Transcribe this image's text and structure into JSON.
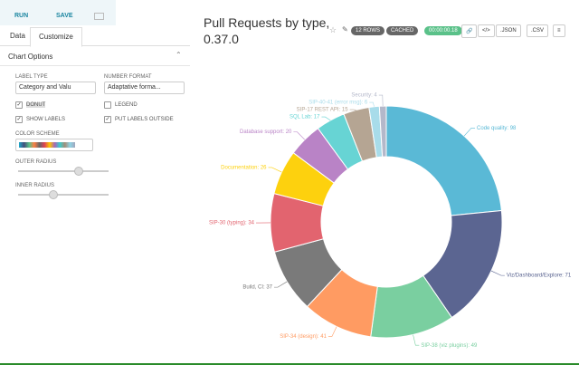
{
  "toolbar": {
    "run": "RUN",
    "save": "SAVE"
  },
  "tabs": [
    "Data",
    "Customize"
  ],
  "section": "Chart Options",
  "controls": {
    "label_type": {
      "label": "LABEL TYPE",
      "value": "Category and Valu"
    },
    "number_format": {
      "label": "NUMBER FORMAT",
      "value": "Adaptative forma..."
    },
    "checkboxes": [
      {
        "label": "DONUT",
        "checked": true
      },
      {
        "label": "LEGEND",
        "checked": false
      },
      {
        "label": "SHOW LABELS",
        "checked": true
      },
      {
        "label": "PUT LABELS OUTSIDE",
        "checked": true
      }
    ],
    "color_scheme": "COLOR SCHEME",
    "outer_radius": "OUTER RADIUS",
    "inner_radius": "INNER RADIUS"
  },
  "header": {
    "badges": [
      "12 ROWS",
      "CACHED",
      "00:00:00.18"
    ],
    "buttons": [
      ".JSON",
      ".CSV"
    ]
  },
  "chart_data": {
    "type": "pie",
    "title": "Pull Requests by type, 0.37.0",
    "donut": true,
    "categories": [
      "Code quality",
      "Viz/Dashboard/Explore",
      "SIP-38 (viz plugins)",
      "SIP-34 (design)",
      "Build, CI",
      "SIP-30 (typing)",
      "Documentation",
      "Database support",
      "SQL Lab",
      "SIP-17 REST API",
      "SIP-40-41 (error msg)",
      "Security"
    ],
    "values": [
      98,
      71,
      49,
      41,
      37,
      34,
      26,
      20,
      17,
      15,
      6,
      4
    ],
    "value_labels": [
      "Code quality: 98",
      "Viz/Dashboard/Explore: 71",
      "SIP-38 (viz plugins): 49",
      "SIP-34 (design): 41",
      "Build, CI: 37",
      "SIP-30 (typing): 34",
      "Documentation: 26",
      "Database support: 20",
      "SQL Lab: 17",
      "SIP-17 REST API: 15",
      "SIP-40-41 (error msg): 6",
      "Security: 4"
    ],
    "colors": [
      "#5ab9d6",
      "#5b6591",
      "#7acfa0",
      "#ff9b62",
      "#7a7a7a",
      "#e2646f",
      "#fdd10e",
      "#b983c6",
      "#67d4d4",
      "#b5a593",
      "#a8dcea",
      "#b4b8ca"
    ]
  }
}
